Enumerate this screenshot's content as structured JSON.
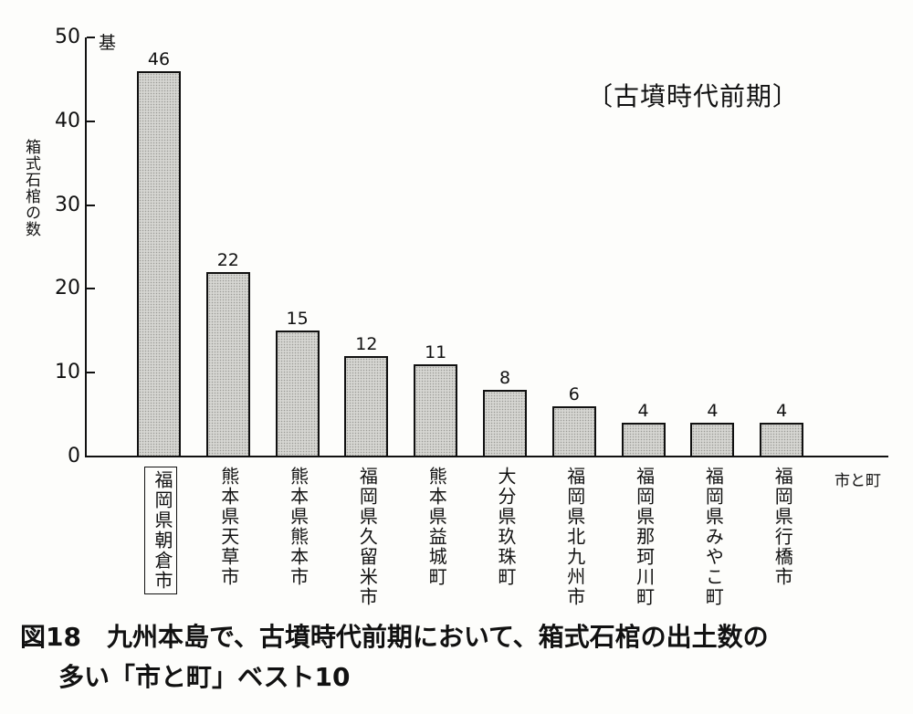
{
  "chart_data": {
    "type": "bar",
    "title": "〔古墳時代前期〕",
    "caption": "図18　九州本島で、古墳時代前期において、箱式石棺の出土数の多い「市と町」ベスト10",
    "xlabel": "市と町",
    "ylabel": "箱式石棺の数",
    "y_unit": "基",
    "ylim": [
      0,
      50
    ],
    "yticks": [
      0,
      10,
      20,
      30,
      40,
      50
    ],
    "grid": false,
    "legend": null,
    "highlighted_category": "福岡県朝倉市",
    "categories": [
      "福岡県朝倉市",
      "熊本県天草市",
      "熊本県熊本市",
      "福岡県久留米市",
      "熊本県益城町",
      "大分県玖珠町",
      "福岡県北九州市",
      "福岡県那珂川町",
      "福岡県みやこ町",
      "福岡県行橋市"
    ],
    "values": [
      46,
      22,
      15,
      12,
      11,
      8,
      6,
      4,
      4,
      4
    ]
  },
  "figure": {
    "period_label": "〔古墳時代前期〕",
    "caption_line1": "図18　九州本島で、古墳時代前期において、箱式石棺の出土数の",
    "caption_line2": "多い「市と町」ベスト10",
    "y_unit": "基",
    "y_label": "箱式石棺の数",
    "x_label": "市と町",
    "y_ticks": [
      "0",
      "10",
      "20",
      "30",
      "40",
      "50"
    ],
    "bar_fill": "#d6d6d2",
    "bar_stroke": "#111111"
  }
}
